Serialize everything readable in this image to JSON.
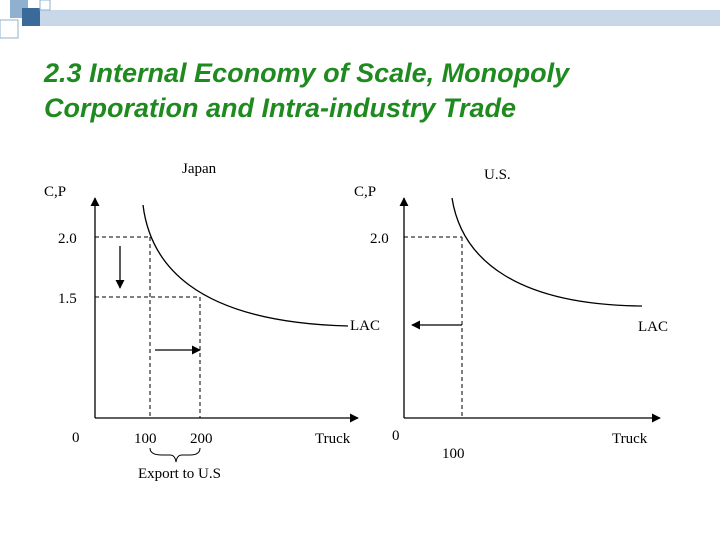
{
  "slide": {
    "title_line1": "2.3 Internal Economy of Scale, Monopoly",
    "title_line2": "Corporation and Intra-industry Trade",
    "title_color": "#1f8a1f",
    "header_colors": [
      "#3a6a9a",
      "#8fb0cf",
      "#c9d8e8"
    ]
  },
  "japan_panel": {
    "panel_label": "Japan",
    "y_axis_label": "C,P",
    "x_axis_label": "Truck",
    "origin_label": "0",
    "y_tick_high": "2.0",
    "y_tick_low": "1.5",
    "x_tick_a": "100",
    "x_tick_b": "200",
    "curve_label": "LAC",
    "brace_label": "Export to U.S",
    "arrow_down_icon": "down-arrow",
    "arrow_right_icon": "right-arrow"
  },
  "us_panel": {
    "panel_label": "U.S.",
    "y_axis_label": "C,P",
    "x_axis_label": "Truck",
    "origin_label": "0",
    "y_tick_high": "2.0",
    "x_tick_a": "100",
    "curve_label": "LAC",
    "arrow_left_icon": "left-arrow"
  }
}
